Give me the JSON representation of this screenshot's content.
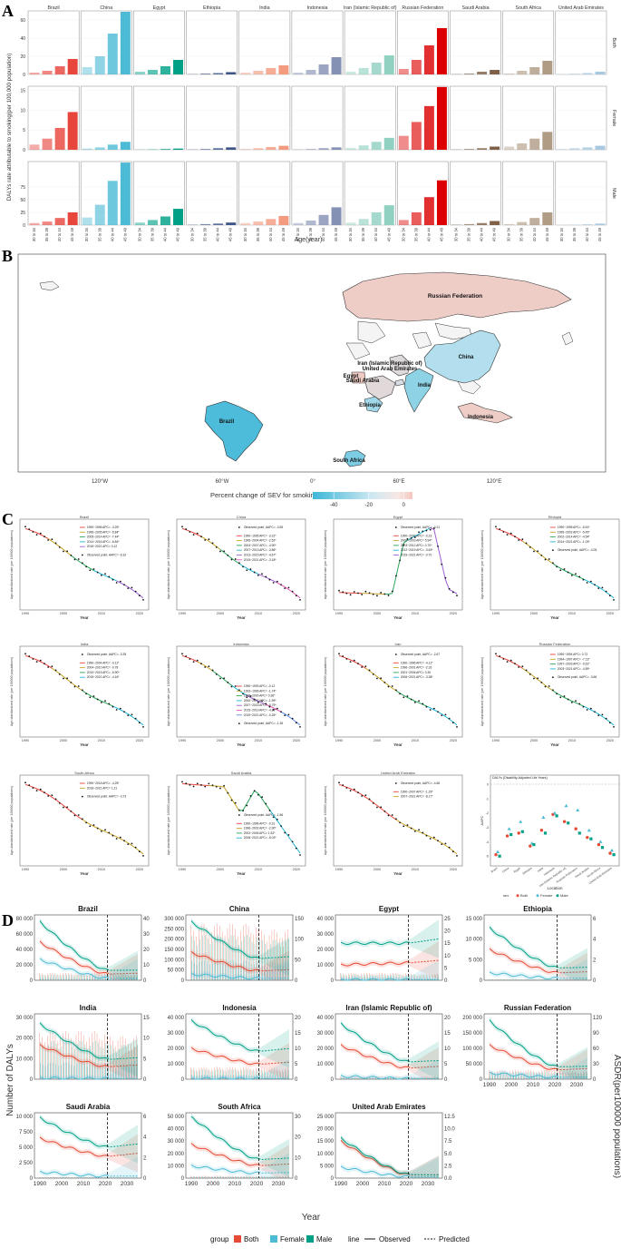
{
  "panels": {
    "a": "A",
    "b": "B",
    "c": "C",
    "d": "D"
  },
  "colors": {
    "countries": {
      "Brazil": "#E8453C",
      "China": "#4DBBD5",
      "Egypt": "#00A087",
      "Ethiopia": "#3C5488",
      "India": "#F39B7F",
      "Indonesia": "#8491B4",
      "Iran (Islamic Republic of)": "#91D1C2",
      "Russian Federation": "#DC0000",
      "Saudi Arabia": "#7E6148",
      "South Africa": "#B09C85",
      "United Arab Emirates": "#A8C8E0"
    },
    "both": "#E64B35",
    "female": "#4DBBD5",
    "male": "#00A087"
  },
  "chart_data": [
    {
      "type": "bar",
      "countries": [
        "Brazil",
        "China",
        "Egypt",
        "Ethiopia",
        "India",
        "Indonesia",
        "Iran (Islamic Republic of)",
        "Russian Federation",
        "Saudi Arabia",
        "South Africa",
        "United Arab Emirates"
      ],
      "facets": [
        "Both",
        "Female",
        "Male"
      ],
      "categories": [
        "30 to 34",
        "35 to 39",
        "40 to 44",
        "45 to 49"
      ],
      "ylabel": "DALYs rate attributable to smoking(per 100,000 population)",
      "xlabel": "Age(year)",
      "rows": [
        {
          "facet": "Both",
          "yticks": [
            0,
            20,
            40,
            60
          ],
          "ylim": [
            0,
            70
          ],
          "values": [
            [
              2,
              4,
              9,
              17
            ],
            [
              8,
              20,
              45,
              69
            ],
            [
              3,
              5,
              9,
              16
            ],
            [
              0.5,
              1,
              1.5,
              2.5
            ],
            [
              2,
              4,
              7,
              10
            ],
            [
              2,
              5,
              11,
              19
            ],
            [
              3,
              7,
              13,
              21
            ],
            [
              6,
              16,
              32,
              51
            ],
            [
              0.5,
              1,
              3,
              5
            ],
            [
              1,
              4,
              8,
              15
            ],
            [
              0.3,
              0.8,
              1.5,
              3
            ]
          ]
        },
        {
          "facet": "Female",
          "yticks": [
            0,
            5,
            10,
            15
          ],
          "ylim": [
            0,
            16
          ],
          "values": [
            [
              1.3,
              2.8,
              5.5,
              9.5
            ],
            [
              0.3,
              0.6,
              1.3,
              2
            ],
            [
              0.05,
              0.1,
              0.2,
              0.3
            ],
            [
              0.1,
              0.2,
              0.4,
              0.6
            ],
            [
              0.2,
              0.4,
              0.7,
              1
            ],
            [
              0.1,
              0.2,
              0.4,
              0.6
            ],
            [
              0.5,
              1.1,
              2,
              3
            ],
            [
              3.5,
              7,
              11,
              15.8
            ],
            [
              0.1,
              0.2,
              0.4,
              0.8
            ],
            [
              0.8,
              1.6,
              2.8,
              4.5
            ],
            [
              0.2,
              0.4,
              0.6,
              1
            ]
          ]
        },
        {
          "facet": "Male",
          "yticks": [
            0,
            25,
            50,
            75
          ],
          "ylim": [
            0,
            125
          ],
          "values": [
            [
              4,
              7,
              14,
              25
            ],
            [
              15,
              40,
              87,
              123
            ],
            [
              5,
              10,
              17,
              32
            ],
            [
              1,
              2,
              3,
              5
            ],
            [
              4,
              7,
              12,
              18
            ],
            [
              4,
              9,
              20,
              35
            ],
            [
              5,
              12,
              25,
              39
            ],
            [
              10,
              25,
              55,
              88
            ],
            [
              1,
              2,
              4,
              8
            ],
            [
              2,
              6,
              14,
              25
            ],
            [
              0.3,
              0.8,
              1.5,
              3
            ]
          ]
        }
      ]
    },
    {
      "type": "map",
      "legend_title": "Percent change of SEV for smoking(%)",
      "legend_ticks": [
        "-40",
        "-20",
        "0"
      ],
      "legend_range": [
        -52,
        5
      ],
      "axis_labels": [
        "120°W",
        "60°W",
        "0°",
        "60°E",
        "120°E"
      ],
      "countries": [
        {
          "name": "Russian Federation",
          "value": 2
        },
        {
          "name": "China",
          "value": -20
        },
        {
          "name": "Iran (Islamic Republic of)",
          "value": -5
        },
        {
          "name": "United Arab Emirates",
          "value": -8
        },
        {
          "name": "Egypt",
          "value": 3
        },
        {
          "name": "Saudi Arabia",
          "value": -4
        },
        {
          "name": "India",
          "value": -30
        },
        {
          "name": "Ethiopia",
          "value": -25
        },
        {
          "name": "Brazil",
          "value": -48
        },
        {
          "name": "South Africa",
          "value": -35
        },
        {
          "name": "Indonesia",
          "value": 2
        }
      ]
    },
    {
      "type": "line",
      "xlabel": "Year",
      "ylabel": "Age-standardized rate (per 100000 populations)",
      "xticks": [
        1990,
        2000,
        2010,
        2020
      ],
      "series": [
        {
          "name": "Brazil",
          "kind": "down",
          "legend": [
            "1990~1996 APC= -3.25*",
            "1996~2005 APC= -5.84*",
            "2005~2014 APC= -7.44*",
            "2014~2016 APC= -6.84*",
            "2016~2021 APC= 0.12"
          ],
          "aapc": "Observed point, AAPC= -6.32"
        },
        {
          "name": "China",
          "kind": "down",
          "legend": [
            "1990~1995 APC= -3.31*",
            "1995~2004 APC= -2.52*",
            "2004~2007 APC= -4.90*",
            "2007~2013 APC= -3.86*",
            "2013~2015 APC= -4.67*",
            "2015~2021 APC= -3.18*"
          ],
          "aapc": "Observed point, AAPC= -3.55"
        },
        {
          "name": "Egypt",
          "kind": "egypt",
          "legend": [
            "1990~2000 APC= -0.23",
            "2000~2003 APC= 5.94*",
            "2003~2012 APC= 0.70*",
            "2012~2019 APC= -3.63*",
            "2019~2021 APC= -0.70"
          ],
          "aapc": "Observed point, AAPC= -0.21"
        },
        {
          "name": "Ethiopia",
          "kind": "down",
          "legend": [
            "1990~1995 APC= -5.61*",
            "1995~2002 APC= -5.49*",
            "2002~2014 APC= -4.54*",
            "2014~2021 APC= -1.03*"
          ],
          "aapc": "Observed point, AAPC= -4.05"
        },
        {
          "name": "India",
          "kind": "down",
          "legend": [
            "1990~2004 APC= -3.11*",
            "2004~2010 APC= -0.78",
            "2010~2015 APC= -5.90*",
            "2015~2021 APC= -4.16*"
          ],
          "aapc": "Observed point, AAPC= -3.35"
        },
        {
          "name": "Indonesia",
          "kind": "down",
          "legend": [
            "1990~1993 APC= -0.12",
            "1993~1996 APC= -1.74*",
            "1996~2000 APC= 0.36*",
            "2000~2007 APC= -1.59*",
            "2007~2015 APC= -0.79*",
            "2015~2019 APC= -4.80*",
            "2019~2021 APC= -0.25*"
          ],
          "aapc": "Observed point, AAPC= -1.36"
        },
        {
          "name": "Iran",
          "kind": "down",
          "legend": [
            "1990~1996 APC= -4.11*",
            "1996~2001 APC= -2.33",
            "2001~2006 APC= 0.30",
            "2006~2021 APC= -3.38*"
          ],
          "aapc": "Observed point, AAPC= -2.67"
        },
        {
          "name": "Russian Federation",
          "kind": "down",
          "legend": [
            "1990~1994 APC= 0.72",
            "1994~1997 APC= -7.13*",
            "1997~2003 APC= -0.61*",
            "2003~2021 APC= -4.59*"
          ],
          "aapc": "Observed point, AAPC= -3.66"
        },
        {
          "name": "South Africa",
          "kind": "down",
          "legend": [
            "1990~2018 APC= -4.25*",
            "2018~2021 APC= 1.21"
          ],
          "aapc": "Observed point, AAPC= -3.73"
        },
        {
          "name": "Saudi Arabia",
          "kind": "saudi",
          "legend": [
            "1990~1996 APC= -0.31",
            "1996~2002 APC= -2.90*",
            "2002~2006 APC= 1.52*",
            "2006~2021 APC= -5.03*"
          ],
          "aapc": "Observed point, AAPC= -1.56"
        },
        {
          "name": "United Arab Emirates",
          "kind": "down",
          "legend": [
            "1990~2007 APC= -1.29*",
            "2007~2021 APC= -8.17*"
          ],
          "aapc": "Observed point, AAPC= -4.66"
        }
      ]
    },
    {
      "type": "scatter",
      "title": "DALYs (Disability-Adjusted Life Years)",
      "ylabel": "AAPC",
      "xlabel": "Location",
      "yticks": [
        "0",
        "-1",
        "-2",
        "-3",
        "-4",
        "-5"
      ],
      "legend": {
        "title": "sex",
        "items": [
          "Both",
          "Female",
          "Male"
        ]
      },
      "locations": [
        "Brazil",
        "China",
        "Egypt",
        "Ethiopia",
        "India",
        "Indonesia",
        "Iran (Islamic Republic of)",
        "Russian Federation",
        "Saudi Arabia",
        "South Africa",
        "United Arab Emirates"
      ],
      "both": [
        -4.9,
        -3.6,
        -3.4,
        -4.3,
        -3.2,
        -2.1,
        -2.6,
        -3.1,
        -3.7,
        -4.2,
        -4.8
      ],
      "female": [
        -4.7,
        -3.1,
        -2.6,
        -4.1,
        -2.3,
        -2.0,
        -1.5,
        -1.8,
        -3.2,
        -4.0,
        -4.6
      ],
      "male": [
        -5.0,
        -3.5,
        -3.3,
        -4.2,
        -3.4,
        -2.2,
        -2.7,
        -3.4,
        -3.8,
        -4.4,
        -4.9
      ]
    },
    {
      "type": "area",
      "xlabel": "Year",
      "ylabel_left": "Number of DALYs",
      "ylabel_right": "ASDR(per100000 populations)",
      "xticks": [
        "1990",
        "2000",
        "2010",
        "2020",
        "2030"
      ],
      "legend": {
        "group_title": "group",
        "groups": [
          "Both",
          "Female",
          "Male"
        ],
        "line_title": "line",
        "lines": [
          "Observed",
          "Predicted"
        ]
      },
      "facets": [
        {
          "name": "Brazil",
          "left": [
            "0",
            "20 000",
            "40 000",
            "60 000",
            "80 000"
          ],
          "right": [
            "0",
            "10",
            "20",
            "30",
            "40"
          ],
          "start": [
            0.62,
            0.34,
            0.95
          ],
          "end": [
            0.1,
            0.03,
            0.16
          ],
          "bars": 0.12
        },
        {
          "name": "China",
          "left": [
            "0",
            "50 000",
            "100 000",
            "150 000",
            "200 000",
            "250 000",
            "300 000"
          ],
          "right": [
            "0",
            "50",
            "100",
            "150"
          ],
          "start": [
            0.45,
            0.1,
            0.95
          ],
          "end": [
            0.15,
            0.03,
            0.35
          ],
          "bars": 0.92
        },
        {
          "name": "Egypt",
          "left": [
            "0",
            "10 000",
            "20 000",
            "30 000",
            "40 000"
          ],
          "right": [
            "0",
            "5",
            "10",
            "15",
            "20",
            "25"
          ],
          "start": [
            0.25,
            0.01,
            0.6
          ],
          "end": [
            0.28,
            0.01,
            0.6
          ],
          "bars": 0.12
        },
        {
          "name": "Ethiopia",
          "left": [
            "0",
            "5 000",
            "10 000",
            "15 000"
          ],
          "right": [
            "0",
            "2",
            "4",
            "6"
          ],
          "start": [
            0.5,
            0.12,
            0.85
          ],
          "end": [
            0.12,
            0.03,
            0.2
          ],
          "bars": 0.02
        },
        {
          "name": "India",
          "left": [
            "0",
            "10 000",
            "20 000",
            "30 000"
          ],
          "right": [
            "0",
            "5",
            "10",
            "15"
          ],
          "start": [
            0.55,
            0.02,
            0.9
          ],
          "end": [
            0.2,
            0.01,
            0.32
          ],
          "bars": 0.78
        },
        {
          "name": "Indonesia",
          "left": [
            "0",
            "10 000",
            "20 000",
            "30 000",
            "40 000"
          ],
          "right": [
            "0",
            "5",
            "10",
            "15",
            "20"
          ],
          "start": [
            0.5,
            0.01,
            0.95
          ],
          "end": [
            0.24,
            0.01,
            0.45
          ],
          "bars": 0.2
        },
        {
          "name": "Iran (Islamic Republic of)",
          "left": [
            "0",
            "10 000",
            "20 000",
            "30 000",
            "40 000"
          ],
          "right": [
            "0",
            "5",
            "10",
            "15",
            "20"
          ],
          "start": [
            0.55,
            0.05,
            0.9
          ],
          "end": [
            0.18,
            0.01,
            0.28
          ],
          "bars": 0.05
        },
        {
          "name": "Russian Federation",
          "left": [
            "0",
            "50 000",
            "100 000",
            "150 000",
            "200 000"
          ],
          "right": [
            "0",
            "30",
            "60",
            "90",
            "120"
          ],
          "start": [
            0.55,
            0.1,
            0.95
          ],
          "end": [
            0.15,
            0.03,
            0.2
          ],
          "bars": 0.15
        },
        {
          "name": "Saudi Arabia",
          "left": [
            "0",
            "2 500",
            "5 000",
            "7 500",
            "10 000"
          ],
          "right": [
            "0",
            "2",
            "4",
            "6"
          ],
          "start": [
            0.65,
            0.1,
            0.98
          ],
          "end": [
            0.35,
            0.03,
            0.5
          ],
          "bars": 0.02
        },
        {
          "name": "South Africa",
          "left": [
            "0",
            "10 000",
            "20 000",
            "30 000",
            "40 000",
            "50 000"
          ],
          "right": [
            "0",
            "10",
            "20",
            "30"
          ],
          "start": [
            0.55,
            0.2,
            1.0
          ],
          "end": [
            0.2,
            0.08,
            0.3
          ],
          "bars": 0.04
        },
        {
          "name": "United Arab Emirates",
          "left": [
            "0",
            "5 000",
            "10 000",
            "15 000",
            "20 000",
            "25 000"
          ],
          "right": [
            "0.0",
            "2.5",
            "5.0",
            "7.5",
            "10.0",
            "12.5"
          ],
          "start": [
            0.6,
            0.18,
            0.65
          ],
          "end": [
            0.05,
            0.02,
            0.06
          ],
          "bars": 0.01
        }
      ]
    }
  ]
}
